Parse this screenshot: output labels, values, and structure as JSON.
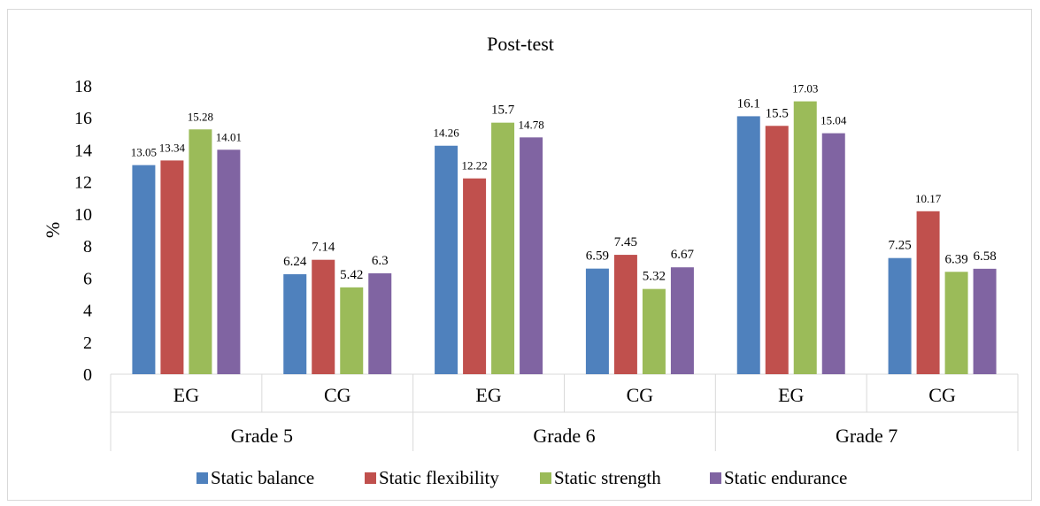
{
  "chart_data": {
    "type": "bar",
    "title": "Post-test",
    "ylabel": "%",
    "xlabel": "",
    "ylim": [
      0,
      18
    ],
    "yticks": [
      0,
      2,
      4,
      6,
      8,
      10,
      12,
      14,
      16,
      18
    ],
    "grid": false,
    "legend_position": "bottom",
    "groups": [
      {
        "label": "Grade 5",
        "categories": [
          "EG",
          "CG"
        ]
      },
      {
        "label": "Grade 6",
        "categories": [
          "EG",
          "CG"
        ]
      },
      {
        "label": "Grade 7",
        "categories": [
          "EG",
          "CG"
        ]
      }
    ],
    "categories": [
      "EG",
      "CG",
      "EG",
      "CG",
      "EG",
      "CG"
    ],
    "series": [
      {
        "name": "Static balance",
        "color": "#4f81bd",
        "values": [
          13.05,
          6.24,
          14.26,
          6.59,
          16.1,
          7.25
        ],
        "labels": [
          "13.05",
          "6.24",
          "14.26",
          "6.59",
          "16.1",
          "7.25"
        ]
      },
      {
        "name": "Static flexibility",
        "color": "#c0504d",
        "values": [
          13.34,
          7.14,
          12.22,
          7.45,
          15.5,
          10.17
        ],
        "labels": [
          "13.34",
          "7.14",
          "12.22",
          "7.45",
          "15.5",
          "10.17"
        ]
      },
      {
        "name": "Static strength",
        "color": "#9bbb59",
        "values": [
          15.28,
          5.42,
          15.7,
          5.32,
          17.03,
          6.39
        ],
        "labels": [
          "15.28",
          "5.42",
          "15.7",
          "5.32",
          "17.03",
          "6.39"
        ]
      },
      {
        "name": "Static endurance",
        "color": "#8064a2",
        "values": [
          14.01,
          6.3,
          14.78,
          6.67,
          15.04,
          6.58
        ],
        "labels": [
          "14.01",
          "6.3",
          "14.78",
          "6.67",
          "15.04",
          "6.58"
        ]
      }
    ]
  }
}
